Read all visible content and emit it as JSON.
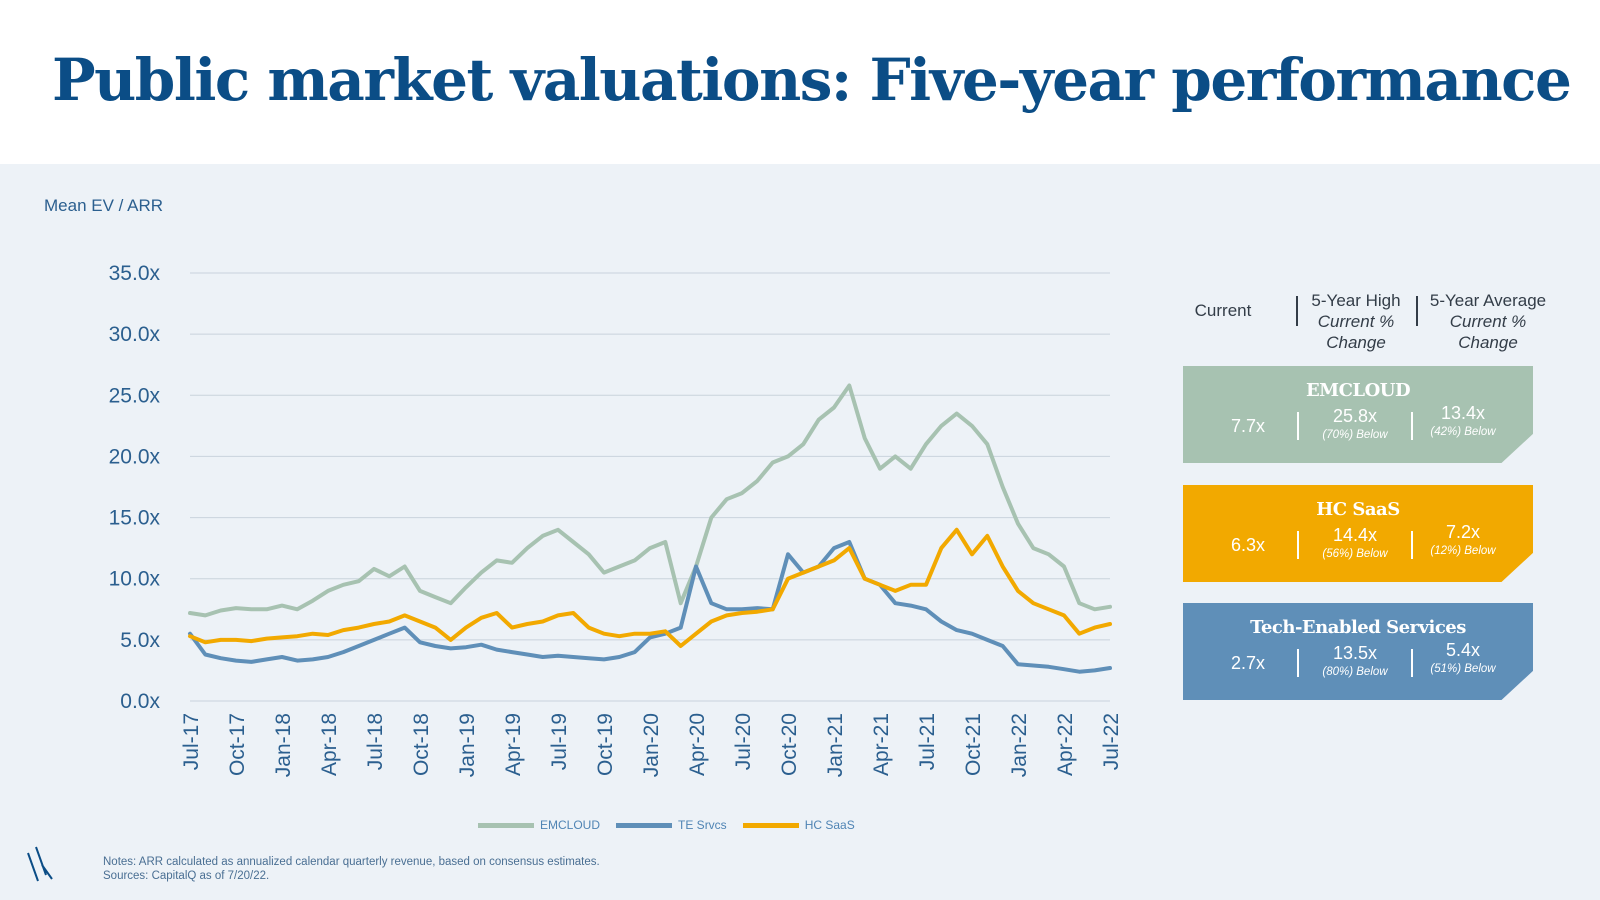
{
  "title": "Public market valuations: Five-year performance",
  "colors": {
    "title": "#0b4d86",
    "panel_bg": "#edf2f7",
    "axis_text": "#2b5f8f",
    "emcloud": "#a7c2b1",
    "te_srvcs": "#5f8fb8",
    "hc_saas": "#f2a900"
  },
  "chart_data": {
    "type": "line",
    "ylabel": "Mean EV / ARR",
    "ylim": [
      0,
      35
    ],
    "yticks": [
      "35.0x",
      "30.0x",
      "25.0x",
      "20.0x",
      "15.0x",
      "10.0x",
      "5.0x",
      "0.0x"
    ],
    "ytick_values": [
      35,
      30,
      25,
      20,
      15,
      10,
      5,
      0
    ],
    "x_categories": [
      "Jul-17",
      "Oct-17",
      "Jan-18",
      "Apr-18",
      "Jul-18",
      "Oct-18",
      "Jan-19",
      "Apr-19",
      "Jul-19",
      "Oct-19",
      "Jan-20",
      "Apr-20",
      "Jul-20",
      "Oct-20",
      "Jan-21",
      "Apr-21",
      "Jul-21",
      "Oct-21",
      "Jan-22",
      "Apr-22",
      "Jul-22"
    ],
    "grid": true,
    "legend_position": "bottom",
    "series": [
      {
        "name": "EMCLOUD",
        "color": "#a7c2b1",
        "x": [
          "Jul-17",
          "Aug-17",
          "Sep-17",
          "Oct-17",
          "Nov-17",
          "Dec-17",
          "Jan-18",
          "Feb-18",
          "Mar-18",
          "Apr-18",
          "May-18",
          "Jun-18",
          "Jul-18",
          "Aug-18",
          "Sep-18",
          "Oct-18",
          "Nov-18",
          "Dec-18",
          "Jan-19",
          "Feb-19",
          "Mar-19",
          "Apr-19",
          "May-19",
          "Jun-19",
          "Jul-19",
          "Aug-19",
          "Sep-19",
          "Oct-19",
          "Nov-19",
          "Dec-19",
          "Jan-20",
          "Feb-20",
          "Mar-20",
          "Apr-20",
          "May-20",
          "Jun-20",
          "Jul-20",
          "Aug-20",
          "Sep-20",
          "Oct-20",
          "Nov-20",
          "Dec-20",
          "Jan-21",
          "Feb-21",
          "Mar-21",
          "Apr-21",
          "May-21",
          "Jun-21",
          "Jul-21",
          "Aug-21",
          "Sep-21",
          "Oct-21",
          "Nov-21",
          "Dec-21",
          "Jan-22",
          "Feb-22",
          "Mar-22",
          "Apr-22",
          "May-22",
          "Jun-22",
          "Jul-22"
        ],
        "values": [
          7.2,
          7.0,
          7.4,
          7.6,
          7.5,
          7.5,
          7.8,
          7.5,
          8.2,
          9.0,
          9.5,
          9.8,
          10.8,
          10.2,
          11.0,
          9.0,
          8.5,
          8.0,
          9.3,
          10.5,
          11.5,
          11.3,
          12.5,
          13.5,
          14.0,
          13.0,
          12.0,
          10.5,
          11.0,
          11.5,
          12.5,
          13.0,
          8.0,
          11.0,
          15.0,
          16.5,
          17.0,
          18.0,
          19.5,
          20.0,
          21.0,
          23.0,
          24.0,
          25.8,
          21.5,
          19.0,
          20.0,
          19.0,
          21.0,
          22.5,
          23.5,
          22.5,
          21.0,
          17.5,
          14.5,
          12.5,
          12.0,
          11.0,
          8.0,
          7.5,
          7.7
        ]
      },
      {
        "name": "TE Srvcs",
        "color": "#5f8fb8",
        "x": [
          "Jul-17",
          "Aug-17",
          "Sep-17",
          "Oct-17",
          "Nov-17",
          "Dec-17",
          "Jan-18",
          "Feb-18",
          "Mar-18",
          "Apr-18",
          "May-18",
          "Jun-18",
          "Jul-18",
          "Aug-18",
          "Sep-18",
          "Oct-18",
          "Nov-18",
          "Dec-18",
          "Jan-19",
          "Feb-19",
          "Mar-19",
          "Apr-19",
          "May-19",
          "Jun-19",
          "Jul-19",
          "Aug-19",
          "Sep-19",
          "Oct-19",
          "Nov-19",
          "Dec-19",
          "Jan-20",
          "Feb-20",
          "Mar-20",
          "Apr-20",
          "May-20",
          "Jun-20",
          "Jul-20",
          "Aug-20",
          "Sep-20",
          "Oct-20",
          "Nov-20",
          "Dec-20",
          "Jan-21",
          "Feb-21",
          "Mar-21",
          "Apr-21",
          "May-21",
          "Jun-21",
          "Jul-21",
          "Aug-21",
          "Sep-21",
          "Oct-21",
          "Nov-21",
          "Dec-21",
          "Jan-22",
          "Feb-22",
          "Mar-22",
          "Apr-22",
          "May-22",
          "Jun-22",
          "Jul-22"
        ],
        "values": [
          5.5,
          3.8,
          3.5,
          3.3,
          3.2,
          3.4,
          3.6,
          3.3,
          3.4,
          3.6,
          4.0,
          4.5,
          5.0,
          5.5,
          6.0,
          4.8,
          4.5,
          4.3,
          4.4,
          4.6,
          4.2,
          4.0,
          3.8,
          3.6,
          3.7,
          3.6,
          3.5,
          3.4,
          3.6,
          4.0,
          5.2,
          5.5,
          6.0,
          11.0,
          8.0,
          7.5,
          7.5,
          7.6,
          7.5,
          12.0,
          10.5,
          11.0,
          12.5,
          13.0,
          10.0,
          9.5,
          8.0,
          7.8,
          7.5,
          6.5,
          5.8,
          5.5,
          5.0,
          4.5,
          3.0,
          2.9,
          2.8,
          2.6,
          2.4,
          2.5,
          2.7
        ]
      },
      {
        "name": "HC SaaS",
        "color": "#f2a900",
        "x": [
          "Jul-17",
          "Aug-17",
          "Sep-17",
          "Oct-17",
          "Nov-17",
          "Dec-17",
          "Jan-18",
          "Feb-18",
          "Mar-18",
          "Apr-18",
          "May-18",
          "Jun-18",
          "Jul-18",
          "Aug-18",
          "Sep-18",
          "Oct-18",
          "Nov-18",
          "Dec-18",
          "Jan-19",
          "Feb-19",
          "Mar-19",
          "Apr-19",
          "May-19",
          "Jun-19",
          "Jul-19",
          "Aug-19",
          "Sep-19",
          "Oct-19",
          "Nov-19",
          "Dec-19",
          "Jan-20",
          "Feb-20",
          "Mar-20",
          "Apr-20",
          "May-20",
          "Jun-20",
          "Jul-20",
          "Aug-20",
          "Sep-20",
          "Oct-20",
          "Nov-20",
          "Dec-20",
          "Jan-21",
          "Feb-21",
          "Mar-21",
          "Apr-21",
          "May-21",
          "Jun-21",
          "Jul-21",
          "Aug-21",
          "Sep-21",
          "Oct-21",
          "Nov-21",
          "Dec-21",
          "Jan-22",
          "Feb-22",
          "Mar-22",
          "Apr-22",
          "May-22",
          "Jun-22",
          "Jul-22"
        ],
        "values": [
          5.3,
          4.8,
          5.0,
          5.0,
          4.9,
          5.1,
          5.2,
          5.3,
          5.5,
          5.4,
          5.8,
          6.0,
          6.3,
          6.5,
          7.0,
          6.5,
          6.0,
          5.0,
          6.0,
          6.8,
          7.2,
          6.0,
          6.3,
          6.5,
          7.0,
          7.2,
          6.0,
          5.5,
          5.3,
          5.5,
          5.5,
          5.7,
          4.5,
          5.5,
          6.5,
          7.0,
          7.2,
          7.3,
          7.5,
          10.0,
          10.5,
          11.0,
          11.5,
          12.5,
          10.0,
          9.5,
          9.0,
          9.5,
          9.5,
          12.5,
          14.0,
          12.0,
          13.5,
          11.0,
          9.0,
          8.0,
          7.5,
          7.0,
          5.5,
          6.0,
          6.3
        ]
      }
    ]
  },
  "legend": [
    "EMCLOUD",
    "TE Srvcs",
    "HC SaaS"
  ],
  "notes": "Notes: ARR calculated as annualized calendar quarterly revenue, based on consensus estimates. Sources: CapitalQ as of 7/20/22.",
  "table": {
    "header": {
      "current": "Current",
      "high_title": "5-Year High",
      "high_sub": "Current % Change",
      "avg_title": "5-Year Average",
      "avg_sub": "Current % Change"
    },
    "rows": [
      {
        "name": "EMCLOUD",
        "current": "7.7x",
        "high": "25.8x",
        "high_change": "(70%) Below",
        "avg": "13.4x",
        "avg_change": "(42%) Below",
        "color": "#a7c2b1"
      },
      {
        "name": "HC SaaS",
        "current": "6.3x",
        "high": "14.4x",
        "high_change": "(56%) Below",
        "avg": "7.2x",
        "avg_change": "(12%) Below",
        "color": "#f2a900"
      },
      {
        "name": "Tech-Enabled Services",
        "current": "2.7x",
        "high": "13.5x",
        "high_change": "(80%) Below",
        "avg": "5.4x",
        "avg_change": "(51%) Below",
        "color": "#5f8fb8"
      }
    ]
  }
}
